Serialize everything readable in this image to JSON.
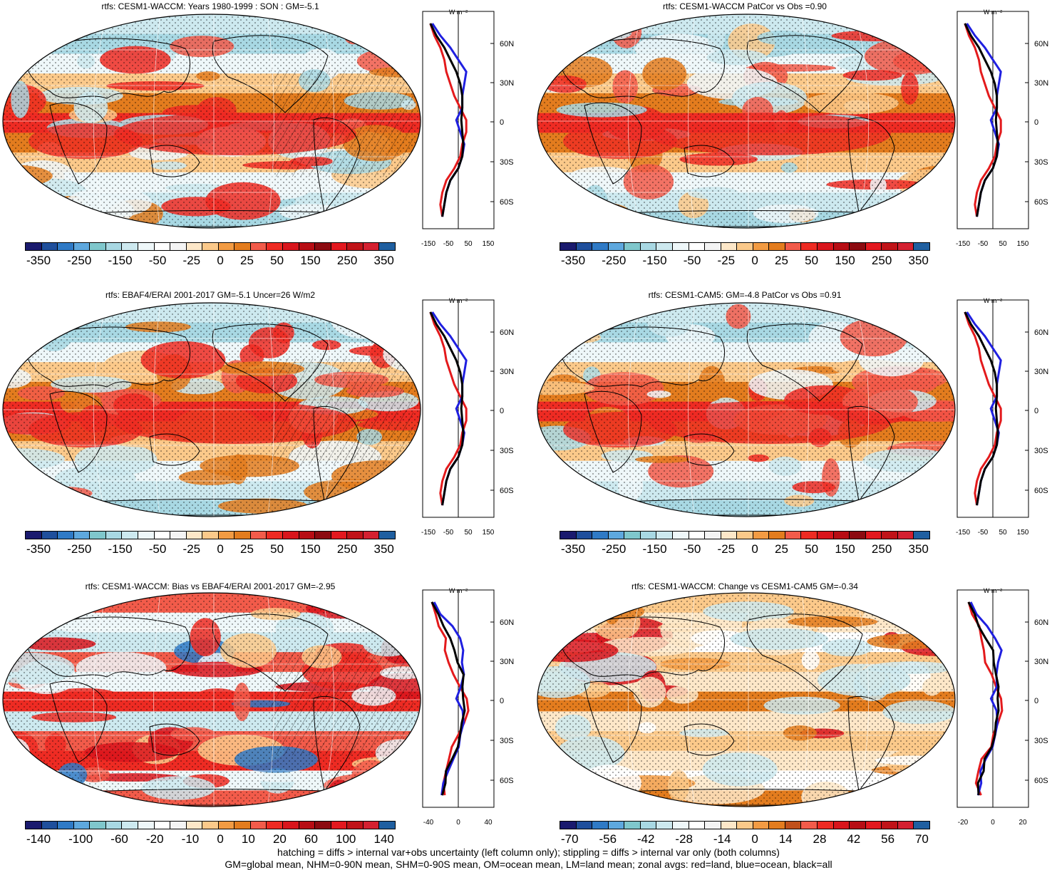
{
  "panels": [
    {
      "title": "rtfs: CESM1-WACCM: Years 1980-1999 : SON : GM=-5.1",
      "colorbar": [
        "-350",
        "-250",
        "-150",
        "-50",
        "-25",
        "0",
        "25",
        "50",
        "150",
        "250",
        "350"
      ],
      "zonal_xticks": [
        "-150",
        "-50",
        "50",
        "150"
      ],
      "zonal_unit": "W m⁻²",
      "lat_ticks": [
        "60N",
        "30N",
        "0",
        "30S",
        "60S"
      ],
      "hatching": true,
      "style": "clim"
    },
    {
      "title": "rtfs: CESM1-WACCM PatCor vs Obs =0.90",
      "colorbar": [
        "-350",
        "-250",
        "-150",
        "-50",
        "-25",
        "0",
        "25",
        "50",
        "150",
        "250",
        "350"
      ],
      "zonal_xticks": [
        "-150",
        "-50",
        "50",
        "150"
      ],
      "zonal_unit": "W m⁻²",
      "lat_ticks": [
        "60N",
        "30N",
        "0",
        "30S",
        "60S"
      ],
      "hatching": false,
      "style": "clim"
    },
    {
      "title": "rtfs: EBAF4/ERAI 2001-2017 GM=-5.1 Uncer=26 W/m2",
      "colorbar": [
        "-350",
        "-250",
        "-150",
        "-50",
        "-25",
        "0",
        "25",
        "50",
        "150",
        "250",
        "350"
      ],
      "zonal_xticks": [
        "-150",
        "-50",
        "50",
        "150"
      ],
      "zonal_unit": "W m⁻²",
      "lat_ticks": [
        "60N",
        "30N",
        "0",
        "30S",
        "60S"
      ],
      "hatching": true,
      "style": "clim"
    },
    {
      "title": "rtfs: CESM1-CAM5: GM=-4.8 PatCor vs Obs =0.91",
      "colorbar": [
        "-350",
        "-250",
        "-150",
        "-50",
        "-25",
        "0",
        "25",
        "50",
        "150",
        "250",
        "350"
      ],
      "zonal_xticks": [
        "-150",
        "-50",
        "50",
        "150"
      ],
      "zonal_unit": "W m⁻²",
      "lat_ticks": [
        "60N",
        "30N",
        "0",
        "30S",
        "60S"
      ],
      "hatching": false,
      "style": "clim"
    },
    {
      "title": "rtfs: CESM1-WACCM: Bias vs EBAF4/ERAI 2001-2017  GM=-2.95",
      "colorbar": [
        "-140",
        "-100",
        "-60",
        "-20",
        "-10",
        "0",
        "10",
        "20",
        "60",
        "100",
        "140"
      ],
      "zonal_xticks": [
        "-40",
        "0",
        "40"
      ],
      "zonal_unit": "W m⁻²",
      "lat_ticks": [
        "60N",
        "30N",
        "0",
        "30S",
        "60S"
      ],
      "hatching": true,
      "style": "bias"
    },
    {
      "title": "rtfs: CESM1-WACCM: Change vs CESM1-CAM5 GM=-0.34",
      "colorbar": [
        "-70",
        "-56",
        "-42",
        "-28",
        "-14",
        "0",
        "14",
        "28",
        "42",
        "56",
        "70"
      ],
      "zonal_xticks": [
        "-20",
        "0",
        "20"
      ],
      "zonal_unit": "W m⁻²",
      "lat_ticks": [
        "60N",
        "30N",
        "0",
        "30S",
        "60S"
      ],
      "hatching": false,
      "style": "change"
    }
  ],
  "colors": [
    "#1a1a6e",
    "#1f4f9c",
    "#2f7ac6",
    "#5ea8de",
    "#7fc7cc",
    "#a8d8e3",
    "#cde9ef",
    "#eef7f9",
    "#ffffff",
    "#f4f4f4",
    "#fde7c8",
    "#fbc98a",
    "#f29b43",
    "#e37c1e",
    "#f25b4a",
    "#ee2b23",
    "#d9151c",
    "#b70d14",
    "#8c0a10",
    "#e3181f",
    "#c01318",
    "#d42030",
    "#1f5fa0"
  ],
  "zonal_data": {
    "lats": [
      80,
      70,
      60,
      50,
      40,
      30,
      20,
      10,
      0,
      -10,
      -20,
      -30,
      -40,
      -50,
      -60,
      -70,
      -80
    ],
    "clim_all": [
      -140,
      -110,
      -70,
      -40,
      -10,
      10,
      20,
      20,
      15,
      20,
      25,
      20,
      0,
      -40,
      -60,
      -70,
      -80
    ],
    "clim_land": [
      -140,
      -120,
      -90,
      -70,
      -60,
      -40,
      -20,
      10,
      40,
      40,
      20,
      10,
      -20,
      -60,
      -80,
      -90,
      -80
    ],
    "clim_ocean": [
      -130,
      -90,
      -40,
      0,
      40,
      30,
      20,
      20,
      -10,
      10,
      30,
      20,
      0,
      -40,
      -60,
      -70,
      -80
    ]
  },
  "footer": {
    "line1": "hatching = diffs > internal var+obs uncertainty (left column only); stippling = diffs > internal var only (both columns)",
    "line2": "GM=global mean, NHM=0-90N mean, SHM=0-90S mean, OM=ocean mean, LM=land mean; zonal avgs: red=land, blue=ocean, black=all"
  }
}
